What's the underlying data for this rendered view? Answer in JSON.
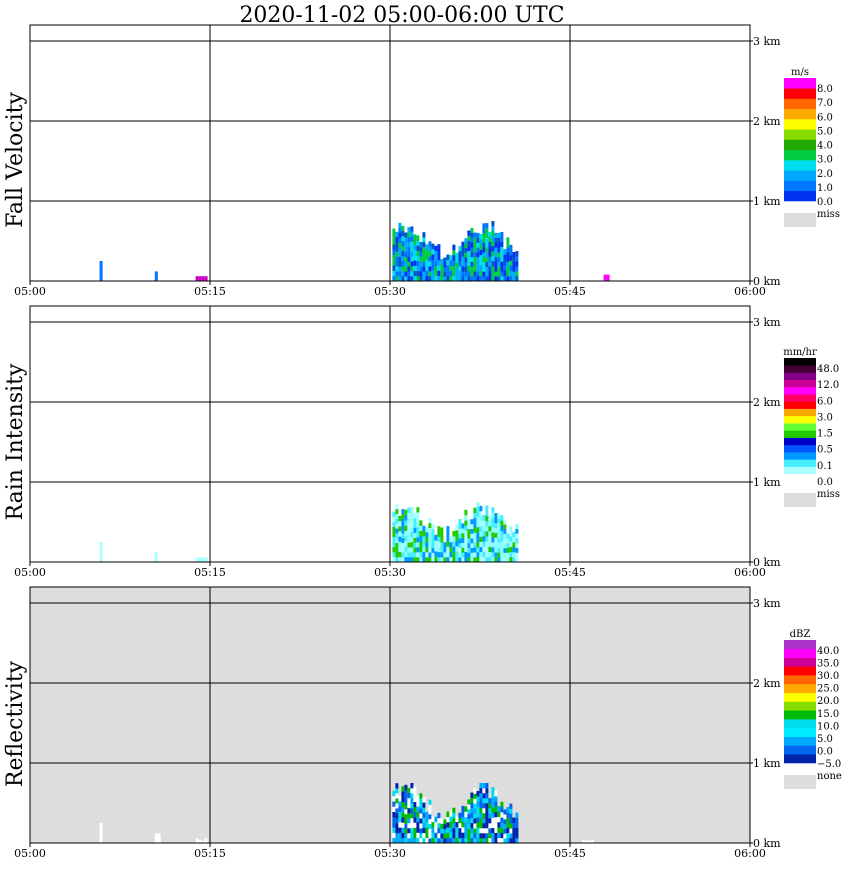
{
  "title": "2020-11-02   05:00-06:00 UTC",
  "chart_data": [
    {
      "type": "heatmap",
      "title": "Fall Velocity",
      "x_ticks": [
        "05:00",
        "05:15",
        "05:30",
        "05:45",
        "06:00"
      ],
      "y_ticks": [
        "0 km",
        "1 km",
        "2 km",
        "3 km"
      ],
      "xlim": [
        "05:00",
        "06:00"
      ],
      "ylim_km": [
        0,
        3.2
      ],
      "grid": true,
      "background": "#ffffff",
      "colorbar": {
        "unit": "m/s",
        "colors": [
          "#0033ee",
          "#0077ff",
          "#00aaff",
          "#00ddee",
          "#00cc44",
          "#22aa00",
          "#88dd00",
          "#ffff00",
          "#ffaa00",
          "#ff6600",
          "#ff0000",
          "#ff00ff"
        ],
        "labels": [
          "8.0",
          "7.0",
          "6.0",
          "5.0",
          "4.0",
          "3.0",
          "2.0",
          "1.0",
          "0.0"
        ],
        "miss_label": "miss",
        "miss_color": "#dddddd"
      },
      "echoes": [
        {
          "t_start_min": 30.2,
          "t_end_min": 40.5,
          "top_km": 0.75,
          "colors": [
            "#0033ee",
            "#0077ff",
            "#00aaff",
            "#00ddee",
            "#00cc44",
            "#0055cc"
          ]
        },
        {
          "t_start_min": 5.8,
          "t_end_min": 6.0,
          "top_km": 0.25,
          "colors": [
            "#0077ff"
          ]
        },
        {
          "t_start_min": 10.4,
          "t_end_min": 10.6,
          "top_km": 0.12,
          "colors": [
            "#0077ff"
          ]
        },
        {
          "t_start_min": 13.8,
          "t_end_min": 14.6,
          "top_km": 0.06,
          "colors": [
            "#cc00cc"
          ]
        },
        {
          "t_start_min": 47.8,
          "t_end_min": 48.2,
          "top_km": 0.08,
          "colors": [
            "#ff00ff"
          ]
        }
      ]
    },
    {
      "type": "heatmap",
      "title": "Rain Intensity",
      "x_ticks": [
        "05:00",
        "05:15",
        "05:30",
        "05:45",
        "06:00"
      ],
      "y_ticks": [
        "0 km",
        "1 km",
        "2 km",
        "3 km"
      ],
      "xlim": [
        "05:00",
        "06:00"
      ],
      "ylim_km": [
        0,
        3.2
      ],
      "grid": true,
      "background": "#ffffff",
      "colorbar": {
        "unit": "mm/hr",
        "colors": [
          "#ffffff",
          "#aaffff",
          "#44eeff",
          "#0099ff",
          "#0055ff",
          "#0000cc",
          "#22cc00",
          "#66ff33",
          "#ffff00",
          "#ffaa00",
          "#ff0000",
          "#ff0066",
          "#ff00ff",
          "#cc0099",
          "#880088",
          "#440033",
          "#000000"
        ],
        "labels": [
          "48.0",
          "12.0",
          "6.0",
          "3.0",
          "1.5",
          "0.5",
          "0.1",
          "0.0"
        ],
        "miss_label": "miss",
        "miss_color": "#dddddd"
      },
      "echoes": [
        {
          "t_start_min": 30.2,
          "t_end_min": 40.5,
          "top_km": 0.75,
          "colors": [
            "#88ffff",
            "#aaffff",
            "#44eeff",
            "#0099ff",
            "#22cc00"
          ]
        },
        {
          "t_start_min": 5.8,
          "t_end_min": 6.0,
          "top_km": 0.25,
          "colors": [
            "#aaffff"
          ]
        },
        {
          "t_start_min": 10.4,
          "t_end_min": 10.6,
          "top_km": 0.12,
          "colors": [
            "#aaffff"
          ]
        },
        {
          "t_start_min": 13.8,
          "t_end_min": 14.6,
          "top_km": 0.06,
          "colors": [
            "#aaffff"
          ]
        }
      ]
    },
    {
      "type": "heatmap",
      "title": "Reflectivity",
      "x_ticks": [
        "05:00",
        "05:15",
        "05:30",
        "05:45",
        "06:00"
      ],
      "y_ticks": [
        "0 km",
        "1 km",
        "2 km",
        "3 km"
      ],
      "xlim": [
        "05:00",
        "06:00"
      ],
      "ylim_km": [
        0,
        3.2
      ],
      "grid": true,
      "background": "#dddddd",
      "colorbar": {
        "unit": "dBZ",
        "colors": [
          "#0022aa",
          "#0066ee",
          "#00aaff",
          "#00eeff",
          "#00ddee",
          "#00bb00",
          "#88dd00",
          "#ffff00",
          "#ffaa00",
          "#ff6600",
          "#ff0000",
          "#cc0099",
          "#ff00ff",
          "#aa33cc"
        ],
        "labels": [
          "40.0",
          "35.0",
          "30.0",
          "25.0",
          "20.0",
          "15.0",
          "10.0",
          "5.0",
          "0.0",
          "−5.0"
        ],
        "miss_label": "none",
        "miss_color": "#dddddd"
      },
      "echoes": [
        {
          "t_start_min": 30.2,
          "t_end_min": 40.5,
          "top_km": 0.75,
          "colors": [
            "#0022aa",
            "#00aaff",
            "#00ddee",
            "#ffffff",
            "#0066ee",
            "#00bb00"
          ]
        },
        {
          "t_start_min": 5.8,
          "t_end_min": 6.0,
          "top_km": 0.25,
          "colors": [
            "#ffffff"
          ]
        },
        {
          "t_start_min": 10.4,
          "t_end_min": 10.8,
          "top_km": 0.12,
          "colors": [
            "#ffffff"
          ]
        },
        {
          "t_start_min": 13.8,
          "t_end_min": 14.8,
          "top_km": 0.06,
          "colors": [
            "#ffffff"
          ]
        },
        {
          "t_start_min": 46.0,
          "t_end_min": 47.0,
          "top_km": 0.05,
          "colors": [
            "#ffffff"
          ]
        }
      ]
    }
  ]
}
